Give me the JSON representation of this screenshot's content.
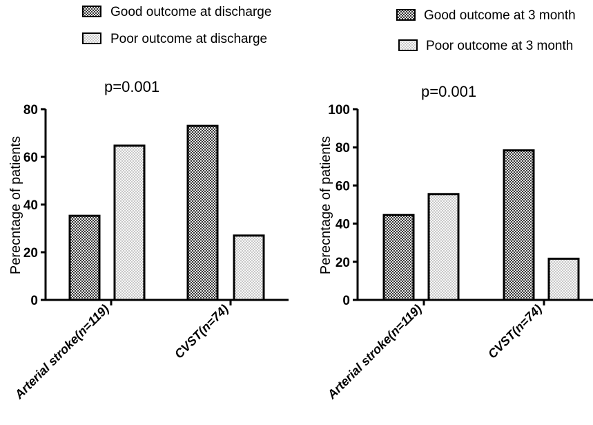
{
  "chart_data": [
    {
      "type": "bar",
      "annotation": "p=0.001",
      "ylabel": "Perecntage  of patients",
      "ylim": [
        0,
        80
      ],
      "yticks": [
        0,
        20,
        40,
        60,
        80
      ],
      "categories": [
        "Arterial stroke(n=119)",
        "CVST(n=74)"
      ],
      "series": [
        {
          "name": "Good outcome at discharge",
          "values": [
            35.3,
            73.0
          ],
          "pattern": "checker"
        },
        {
          "name": "Poor outcome at discharge",
          "values": [
            64.7,
            27.0
          ],
          "pattern": "dots"
        }
      ],
      "legend_position": "top-left"
    },
    {
      "type": "bar",
      "annotation": "p=0.001",
      "ylabel": "Perecntage  of patients",
      "ylim": [
        0,
        100
      ],
      "yticks": [
        0,
        20,
        40,
        60,
        80,
        100
      ],
      "categories": [
        "Arterial stroke(n=119)",
        "CVST(n=74)"
      ],
      "series": [
        {
          "name": "Good outcome at 3 month",
          "values": [
            44.5,
            78.4
          ],
          "pattern": "checker"
        },
        {
          "name": "Poor outcome at 3 month",
          "values": [
            55.5,
            21.6
          ],
          "pattern": "dots"
        }
      ],
      "legend_position": "top-right"
    }
  ]
}
